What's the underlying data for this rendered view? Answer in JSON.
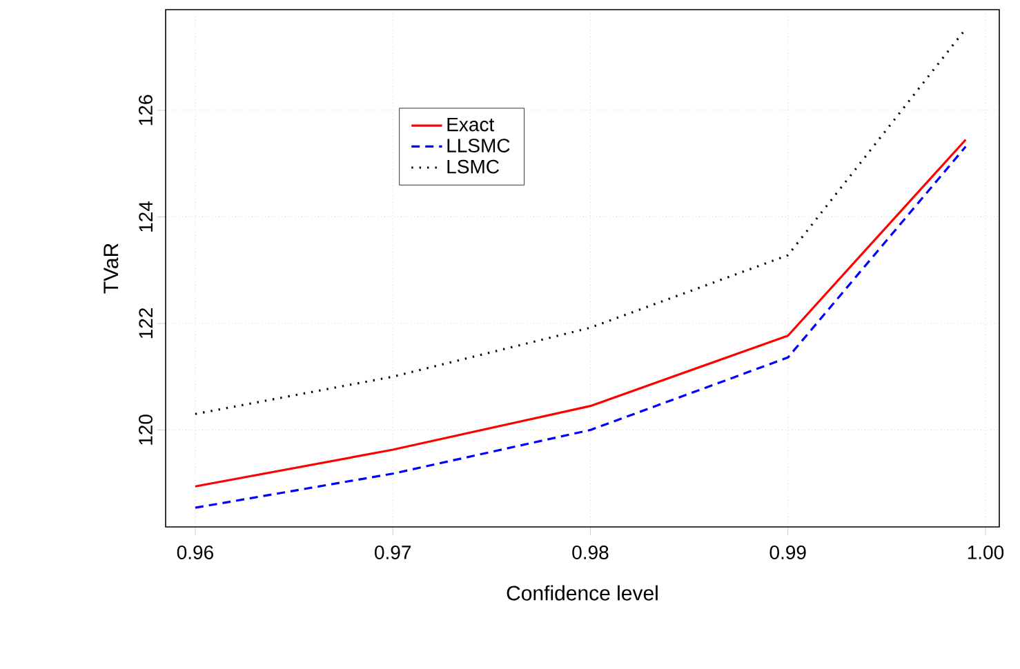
{
  "chart_data": {
    "type": "line",
    "xlabel": "Confidence level",
    "ylabel": "TVaR",
    "x": [
      0.96,
      0.97,
      0.98,
      0.99,
      0.999
    ],
    "series": [
      {
        "name": "Exact",
        "color": "#ff0000",
        "line_style": "solid",
        "values": [
          118.94,
          119.63,
          120.45,
          121.77,
          125.45
        ]
      },
      {
        "name": "LLSMC",
        "color": "#0000ff",
        "line_style": "dashed",
        "values": [
          118.54,
          119.18,
          120.0,
          121.36,
          125.32
        ]
      },
      {
        "name": "LSMC",
        "color": "#000000",
        "line_style": "dotted",
        "values": [
          120.3,
          121.0,
          121.92,
          123.28,
          127.53
        ]
      }
    ],
    "xlim": [
      0.9585,
      1.0007
    ],
    "ylim": [
      118.18,
      127.89
    ],
    "xticks": [
      {
        "value": 0.96,
        "label": "0.96"
      },
      {
        "value": 0.97,
        "label": "0.97"
      },
      {
        "value": 0.98,
        "label": "0.98"
      },
      {
        "value": 0.99,
        "label": "0.99"
      },
      {
        "value": 1.0,
        "label": "1.00"
      }
    ],
    "yticks": [
      120,
      122,
      124,
      126
    ],
    "grid": true,
    "legend": "top left",
    "marker": "none"
  }
}
